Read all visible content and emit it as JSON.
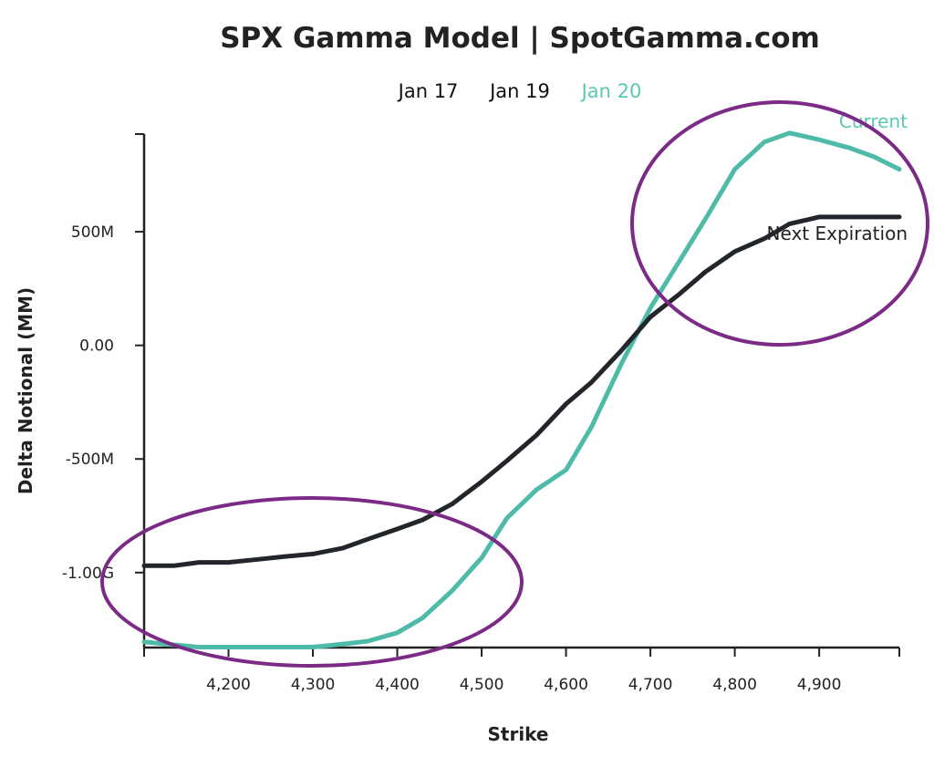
{
  "chart_data": {
    "type": "line",
    "title": "SPX Gamma Model | SpotGamma.com",
    "xlabel": "Strike",
    "ylabel": "Delta Notional (MM)",
    "xlim": [
      4100,
      4995
    ],
    "ylim": [
      -1330,
      930
    ],
    "xticks": [
      {
        "value": 4200,
        "label": "4,200"
      },
      {
        "value": 4300,
        "label": "4,300"
      },
      {
        "value": 4400,
        "label": "4,400"
      },
      {
        "value": 4500,
        "label": "4,500"
      },
      {
        "value": 4600,
        "label": "4,600"
      },
      {
        "value": 4700,
        "label": "4,700"
      },
      {
        "value": 4800,
        "label": "4,800"
      },
      {
        "value": 4900,
        "label": "4,900"
      }
    ],
    "yticks": [
      {
        "value": 500,
        "label": "500M"
      },
      {
        "value": 0,
        "label": "0.00"
      },
      {
        "value": -500,
        "label": "-500M"
      },
      {
        "value": -1000,
        "label": "-1.00G"
      }
    ],
    "legend": [
      {
        "label": "Jan 17",
        "color": "#111111"
      },
      {
        "label": "Jan 19",
        "color": "#111111"
      },
      {
        "label": "Jan 20",
        "color": "#5bc8b3"
      }
    ],
    "series": [
      {
        "name": "Current",
        "color": "#4dbba7",
        "x": [
          4100,
          4135,
          4165,
          4200,
          4235,
          4265,
          4300,
          4335,
          4365,
          4400,
          4430,
          4465,
          4500,
          4530,
          4565,
          4600,
          4630,
          4665,
          4700,
          4735,
          4765,
          4800,
          4835,
          4865,
          4900,
          4935,
          4965,
          4995
        ],
        "y": [
          -1305,
          -1318,
          -1328,
          -1328,
          -1328,
          -1328,
          -1328,
          -1315,
          -1302,
          -1265,
          -1200,
          -1080,
          -935,
          -760,
          -635,
          -548,
          -360,
          -85,
          165,
          375,
          555,
          775,
          895,
          935,
          905,
          870,
          830,
          775
        ]
      },
      {
        "name": "Next Expiration",
        "color": "#22262b",
        "x": [
          4100,
          4135,
          4165,
          4200,
          4235,
          4265,
          4300,
          4335,
          4365,
          4400,
          4430,
          4465,
          4500,
          4530,
          4565,
          4600,
          4630,
          4665,
          4700,
          4735,
          4765,
          4800,
          4835,
          4865,
          4900,
          4935,
          4965,
          4995
        ],
        "y": [
          -970,
          -970,
          -955,
          -955,
          -942,
          -930,
          -918,
          -893,
          -853,
          -808,
          -768,
          -698,
          -600,
          -508,
          -395,
          -258,
          -163,
          -25,
          125,
          228,
          323,
          413,
          470,
          535,
          565,
          565,
          565,
          565
        ]
      }
    ],
    "annotations": [
      {
        "text": "Current",
        "color": "#5bc8b3"
      },
      {
        "text": "Next Expiration",
        "color": "#222222"
      }
    ],
    "highlight_color": "#7b2a86",
    "grid": false
  }
}
